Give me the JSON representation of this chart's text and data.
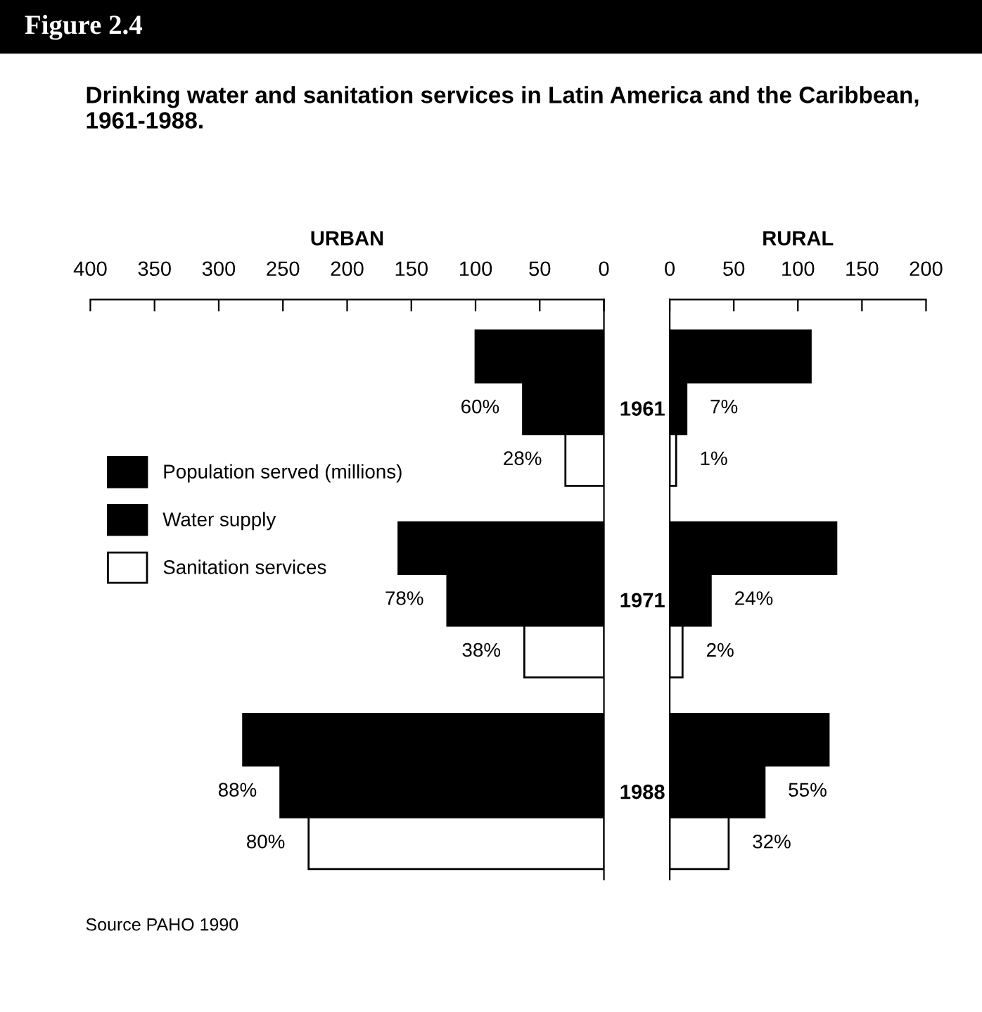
{
  "chart_data": [
    {
      "type": "bar",
      "orientation": "horizontal",
      "title": "Figure 2.4",
      "subtitle": "Drinking water and sanitation services in Latin America and the Caribbean, 1961-1988.",
      "xlabel": "URBAN",
      "categories": [
        "1961",
        "1971",
        "1988"
      ],
      "series": [
        {
          "name": "Population served (millions)",
          "color": "#000000",
          "values": [
            100,
            160,
            281
          ]
        },
        {
          "name": "Water supply",
          "color": "#000000",
          "values": [
            63,
            122,
            252
          ]
        },
        {
          "name": "Sanitation services",
          "color": "#ffffff",
          "values": [
            30,
            62,
            230
          ]
        }
      ],
      "xlim": [
        400,
        0
      ],
      "xticks": [
        400,
        350,
        300,
        250,
        200,
        150,
        100,
        50,
        0
      ],
      "legend": "left",
      "annotations": [
        "Source PAHO 1990",
        {
          "text": "60%",
          "x": 63,
          "y": "1961"
        },
        {
          "text": "78%",
          "x": 122,
          "y": "1971"
        },
        {
          "text": "88%",
          "x": 252,
          "y": "1988"
        },
        "28%",
        "38%",
        "80%"
      ]
    },
    {
      "type": "bar",
      "orientation": "horizontal",
      "xlabel": "RURAL",
      "categories": [
        "1961",
        "1971",
        "1988"
      ],
      "series": [
        {
          "color": "#000000",
          "values": [
            110,
            130,
            124
          ]
        },
        {
          "color": "#000000",
          "values": [
            13,
            32,
            74
          ]
        },
        {
          "color": "#ffffff",
          "values": [
            5,
            10,
            46
          ]
        }
      ],
      "xlim": [
        0,
        200
      ],
      "xticks": [
        0,
        50,
        100,
        150,
        200
      ],
      "tick_labels": "x",
      "annotations": [
        {
          "text": "7%",
          "x": 13,
          "y": "1961"
        },
        {
          "text": "24%",
          "x": 32,
          "y": "1971"
        },
        {
          "text": "55%",
          "x": 74,
          "y": "1988"
        },
        "1%",
        "2%",
        "32%"
      ]
    }
  ]
}
